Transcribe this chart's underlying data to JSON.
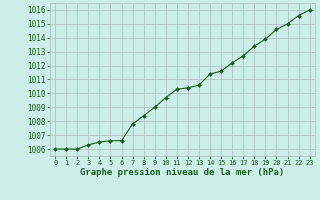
{
  "x": [
    0,
    1,
    2,
    3,
    4,
    5,
    6,
    7,
    8,
    9,
    10,
    11,
    12,
    13,
    14,
    15,
    16,
    17,
    18,
    19,
    20,
    21,
    22,
    23
  ],
  "y": [
    1006.0,
    1006.0,
    1006.0,
    1006.3,
    1006.5,
    1006.6,
    1006.6,
    1007.8,
    1008.4,
    1009.0,
    1009.7,
    1010.3,
    1010.4,
    1010.6,
    1011.4,
    1011.6,
    1012.2,
    1012.7,
    1013.4,
    1013.9,
    1014.6,
    1015.0,
    1015.6,
    1016.0
  ],
  "line_color": "#1a5c1a",
  "marker": "D",
  "marker_size": 2.0,
  "background_color": "#cceee8",
  "grid_color": "#aabcbc",
  "ylabel_ticks": [
    1006,
    1007,
    1008,
    1009,
    1010,
    1011,
    1012,
    1013,
    1014,
    1015,
    1016
  ],
  "ylim": [
    1005.5,
    1016.5
  ],
  "xlim": [
    -0.5,
    23.5
  ],
  "xlabel": "Graphe pression niveau de la mer (hPa)",
  "xlabel_color": "#1a5c1a",
  "tick_color": "#1a5c1a",
  "label_fontsize": 5.5,
  "xlabel_fontsize": 6.5,
  "xtick_fontsize": 5.0
}
